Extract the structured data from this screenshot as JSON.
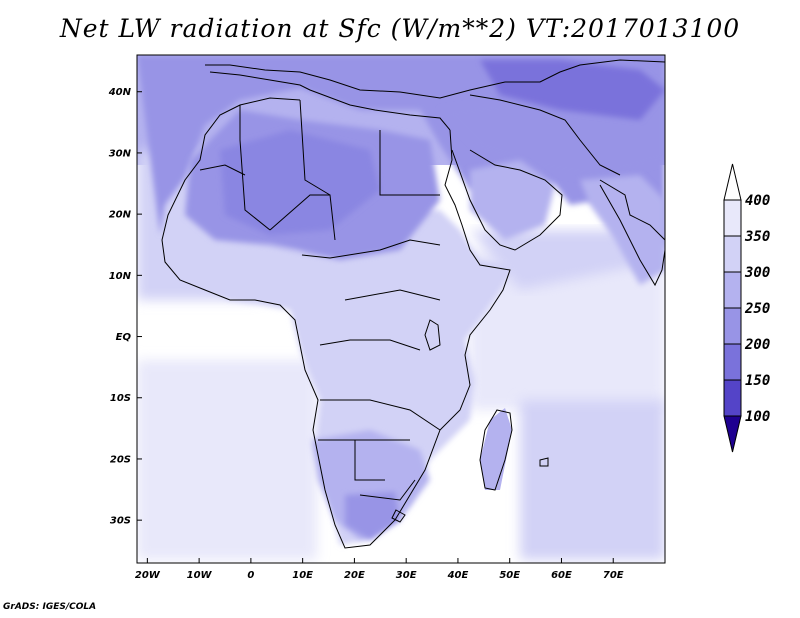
{
  "title": "Net LW radiation at Sfc (W/m**2) VT:2017013100",
  "credit": "GrADS: IGES/COLA",
  "map": {
    "lon_range": [
      -22,
      80
    ],
    "lat_range": [
      -37,
      46
    ],
    "lon_ticks": [
      {
        "value": -20,
        "label": "20W"
      },
      {
        "value": -10,
        "label": "10W"
      },
      {
        "value": 0,
        "label": "0"
      },
      {
        "value": 10,
        "label": "10E"
      },
      {
        "value": 20,
        "label": "20E"
      },
      {
        "value": 30,
        "label": "30E"
      },
      {
        "value": 40,
        "label": "40E"
      },
      {
        "value": 50,
        "label": "50E"
      },
      {
        "value": 60,
        "label": "60E"
      },
      {
        "value": 70,
        "label": "70E"
      }
    ],
    "lat_ticks": [
      {
        "value": 40,
        "label": "40N"
      },
      {
        "value": 30,
        "label": "30N"
      },
      {
        "value": 20,
        "label": "20N"
      },
      {
        "value": 10,
        "label": "10N"
      },
      {
        "value": 0,
        "label": "EQ"
      },
      {
        "value": -10,
        "label": "10S"
      },
      {
        "value": -20,
        "label": "20S"
      },
      {
        "value": -30,
        "label": "30S"
      }
    ]
  },
  "colorbar": {
    "levels": [
      {
        "label": "400",
        "color": "#e8e8fa"
      },
      {
        "label": "350",
        "color": "#d2d2f6"
      },
      {
        "label": "300",
        "color": "#b4b2ef"
      },
      {
        "label": "250",
        "color": "#9894e6"
      },
      {
        "label": "200",
        "color": "#7a72db"
      },
      {
        "label": "150",
        "color": "#5444c8"
      },
      {
        "label": "100",
        "color": "#2c10a8"
      }
    ],
    "top_color": "#ffffff",
    "bottom_color": "#1e0090"
  }
}
